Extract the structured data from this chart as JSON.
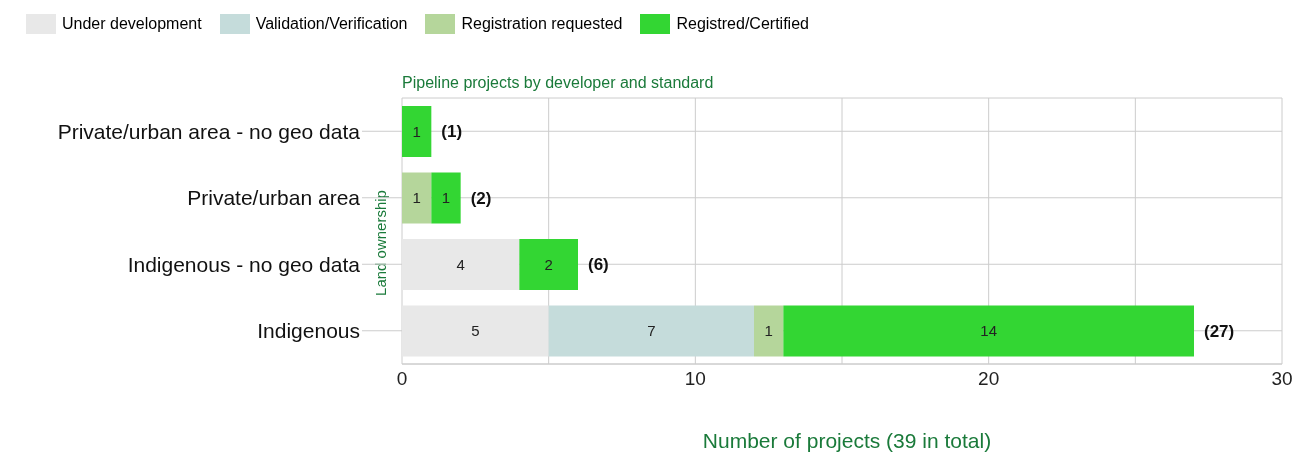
{
  "chart_data": {
    "type": "bar",
    "orientation": "horizontal",
    "stacked": true,
    "title": "Pipeline projects by developer and standard",
    "xlabel": "Number of projects (39 in total)",
    "ylabel": "Land ownership",
    "categories": [
      "Private/urban area - no geo data",
      "Private/urban area",
      "Indigenous - no geo data",
      "Indigenous"
    ],
    "series": [
      {
        "name": "Under development",
        "color": "#e8e8e8",
        "values": [
          null,
          null,
          4,
          5
        ]
      },
      {
        "name": "Validation/Verification",
        "color": "#c5dcdb",
        "values": [
          null,
          null,
          null,
          7
        ]
      },
      {
        "name": "Registration requested",
        "color": "#b5d69b",
        "values": [
          null,
          1,
          null,
          1
        ]
      },
      {
        "name": "Registred/Certified",
        "color": "#33d633",
        "values": [
          1,
          1,
          2,
          14
        ]
      }
    ],
    "totals": [
      "(1)",
      "(2)",
      "(6)",
      "(27)"
    ],
    "data_labels": true,
    "xlim": [
      0,
      30
    ],
    "xticks": [
      0,
      {
        "value": 5,
        "label": null
      },
      10,
      {
        "value": 15,
        "label": null
      },
      20,
      {
        "value": 25,
        "label": null
      },
      30
    ],
    "grid": true,
    "legend": "top left"
  }
}
